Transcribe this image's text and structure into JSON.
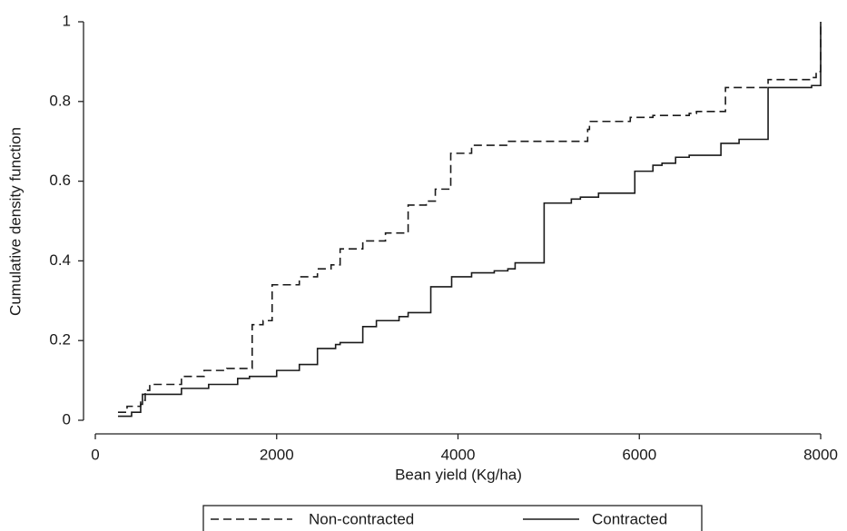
{
  "chart_data": {
    "type": "step",
    "x_label": "Bean yield (Kg/ha)",
    "y_label": "Cumulative density function",
    "xlim": [
      0,
      8000
    ],
    "xticks": [
      0,
      2000,
      4000,
      6000,
      8000
    ],
    "ylim": [
      0,
      1
    ],
    "yticks": [
      0,
      0.2,
      0.4,
      0.6,
      0.8,
      1
    ],
    "grid": false,
    "legend": "bottom",
    "series": [
      {
        "name": "Non-contracted",
        "color": "#1a1a1a",
        "linestyle": "dashed",
        "x": [
          250,
          350,
          500,
          550,
          600,
          950,
          1200,
          1450,
          1730,
          1850,
          1950,
          2250,
          2450,
          2600,
          2700,
          2950,
          3200,
          3450,
          3650,
          3750,
          3920,
          4150,
          4550,
          5430,
          5450,
          5900,
          6150,
          6550,
          6630,
          6950,
          7420,
          7900,
          7950,
          8000
        ],
        "values": [
          0.02,
          0.035,
          0.05,
          0.075,
          0.09,
          0.11,
          0.125,
          0.13,
          0.24,
          0.25,
          0.34,
          0.36,
          0.38,
          0.39,
          0.43,
          0.45,
          0.47,
          0.54,
          0.55,
          0.58,
          0.67,
          0.69,
          0.7,
          0.73,
          0.75,
          0.76,
          0.765,
          0.77,
          0.775,
          0.835,
          0.855,
          0.86,
          0.875,
          1
        ]
      },
      {
        "name": "Contracted",
        "color": "#1a1a1a",
        "linestyle": "solid",
        "x": [
          250,
          400,
          500,
          520,
          950,
          1250,
          1570,
          1700,
          2000,
          2250,
          2450,
          2650,
          2700,
          2950,
          3100,
          3350,
          3450,
          3700,
          3930,
          4150,
          4400,
          4550,
          4630,
          4950,
          5250,
          5350,
          5550,
          5950,
          6150,
          6250,
          6400,
          6550,
          6900,
          7100,
          7420,
          7900,
          8000
        ],
        "values": [
          0.01,
          0.02,
          0.04,
          0.065,
          0.08,
          0.09,
          0.105,
          0.11,
          0.125,
          0.14,
          0.18,
          0.19,
          0.195,
          0.235,
          0.25,
          0.26,
          0.27,
          0.335,
          0.36,
          0.37,
          0.375,
          0.38,
          0.395,
          0.545,
          0.555,
          0.56,
          0.57,
          0.625,
          0.64,
          0.645,
          0.66,
          0.665,
          0.695,
          0.705,
          0.835,
          0.84,
          1
        ]
      }
    ]
  }
}
